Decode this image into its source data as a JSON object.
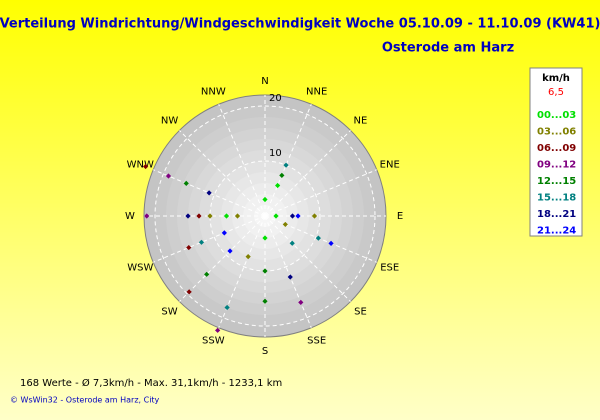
{
  "chart_data": {
    "type": "polar-scatter",
    "title": "Verteilung Windrichtung/Windgeschwindigkeit  Woche 05.10.09 - 11.10.09 (KW41)",
    "subtitle": "Osterode am Harz",
    "directions": [
      "N",
      "NNE",
      "NE",
      "ENE",
      "E",
      "ESE",
      "SE",
      "SSE",
      "S",
      "SSW",
      "SW",
      "WSW",
      "W",
      "WNW",
      "NW",
      "NNW"
    ],
    "rlim": [
      0,
      22
    ],
    "rticks": [
      10,
      20
    ],
    "legend_title": "km/h",
    "legend_value": "6,5",
    "footer_stats": "168 Werte   -   Ø 7,3km/h  -  Max. 31,1km/h   -   1233,1 km",
    "copyright": "© WsWin32  -  Osterode am Harz, City",
    "series": [
      {
        "name": "00...03",
        "color": "#00e000",
        "x": [
          0,
          22.5,
          180,
          270,
          90
        ],
        "values": [
          3,
          6,
          4,
          7,
          2
        ]
      },
      {
        "name": "03...06",
        "color": "#808000",
        "x": [
          270,
          270,
          90,
          202.5,
          112.5
        ],
        "values": [
          10,
          5,
          9,
          8,
          4
        ]
      },
      {
        "name": "06...09",
        "color": "#800000",
        "x": [
          292.5,
          270,
          247.5,
          225
        ],
        "values": [
          23.5,
          12,
          15,
          19.5
        ]
      },
      {
        "name": "09...12",
        "color": "#800080",
        "x": [
          292.5,
          270,
          202.5,
          157.5
        ],
        "values": [
          19,
          21.5,
          22.5,
          17
        ]
      },
      {
        "name": "12...15",
        "color": "#008000",
        "x": [
          292.5,
          225,
          180,
          180,
          22.5
        ],
        "values": [
          15.5,
          15,
          15.5,
          10,
          8
        ]
      },
      {
        "name": "15...18",
        "color": "#008080",
        "x": [
          247.5,
          202.5,
          112.5,
          135,
          22.5
        ],
        "values": [
          12.5,
          18,
          10.5,
          7,
          10
        ]
      },
      {
        "name": "18...21",
        "color": "#000080",
        "x": [
          270,
          292.5,
          90,
          157.5
        ],
        "values": [
          14,
          11,
          5,
          12
        ]
      },
      {
        "name": "21...24",
        "color": "#0000ff",
        "x": [
          90,
          225,
          247.5,
          112.5
        ],
        "values": [
          6,
          9,
          8,
          13
        ]
      }
    ]
  }
}
